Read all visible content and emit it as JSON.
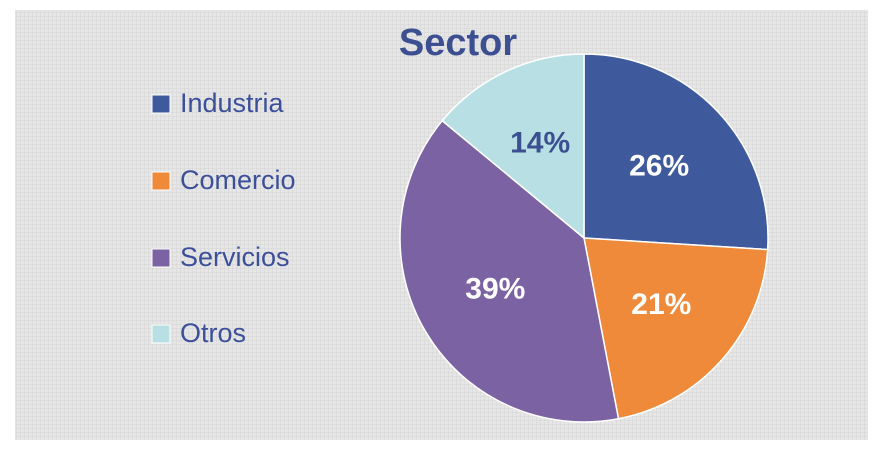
{
  "chart_data": {
    "type": "pie",
    "title": "Sector",
    "categories": [
      "Industria",
      "Comercio",
      "Servicios",
      "Otros"
    ],
    "values": [
      26,
      21,
      39,
      14
    ],
    "value_labels": [
      "26%",
      "21%",
      "39%",
      "14%"
    ],
    "colors": [
      "#3f5a9c",
      "#ee8a3a",
      "#7b62a3",
      "#b8e0e4"
    ],
    "legend": "left"
  }
}
